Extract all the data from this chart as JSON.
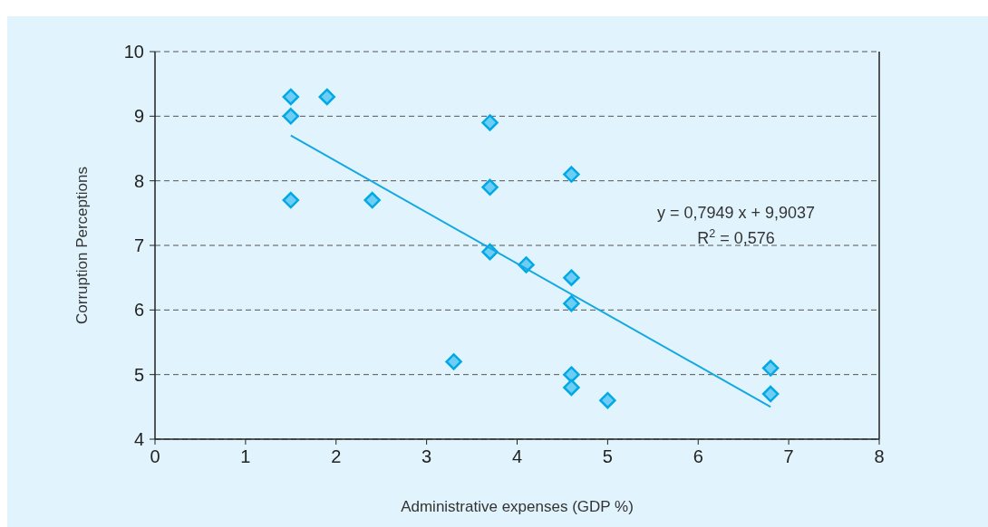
{
  "chart_data": {
    "type": "scatter",
    "xlabel": "Administrative expenses (GDP %)",
    "ylabel": "Corruption Perceptions",
    "xlim": [
      0,
      8
    ],
    "xticks": [
      0,
      1,
      2,
      3,
      4,
      5,
      6,
      7,
      8
    ],
    "ylim": [
      4,
      10
    ],
    "yticks": [
      4,
      5,
      6,
      7,
      8,
      9,
      10
    ],
    "grid": "y",
    "series": [
      {
        "color": "#6dcdf5",
        "marker": "diamond",
        "x": [
          1.5,
          1.5,
          1.5,
          1.9,
          2.4,
          3.3,
          3.7,
          3.7,
          3.7,
          4.1,
          4.6,
          4.6,
          4.6,
          4.6,
          4.6,
          5.0,
          6.8,
          6.8
        ],
        "values": [
          9.3,
          9.0,
          7.7,
          9.3,
          7.7,
          5.2,
          8.9,
          7.9,
          6.9,
          6.7,
          8.1,
          6.5,
          6.1,
          5.0,
          4.8,
          4.6,
          5.1,
          4.7
        ]
      },
      {
        "type": "line",
        "color": "#12a8e2",
        "marker": "none",
        "x": [
          1.5,
          6.8
        ],
        "values": [
          8.7,
          4.5
        ]
      }
    ],
    "annotations": [
      "y = 0,7949 x + 9,9037",
      "R$^{2}$ = 0,576"
    ]
  }
}
